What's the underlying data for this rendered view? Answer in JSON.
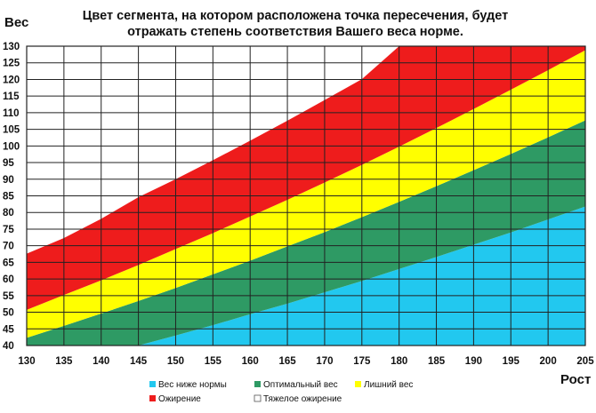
{
  "chart_data": {
    "type": "area",
    "title_lines": [
      "Цвет сегмента, на котором расположена точка пересечения, будет",
      "отражать степень соответствия Вашего веса норме."
    ],
    "xlabel": "Рост",
    "ylabel": "Вес",
    "xlim": [
      130,
      205
    ],
    "ylim": [
      40,
      130
    ],
    "x_ticks": [
      130,
      135,
      140,
      145,
      150,
      155,
      160,
      165,
      170,
      175,
      180,
      185,
      190,
      195,
      200,
      205
    ],
    "y_ticks": [
      40,
      45,
      50,
      55,
      60,
      65,
      70,
      75,
      80,
      85,
      90,
      95,
      100,
      105,
      110,
      115,
      120,
      125,
      130
    ],
    "grid": true,
    "legend_position": "bottom",
    "x": [
      130,
      135,
      140,
      145,
      150,
      155,
      160,
      165,
      170,
      175,
      180,
      185,
      190,
      195,
      200,
      205
    ],
    "series": [
      {
        "name": "Вес ниже нормы",
        "color": "#22c8ef",
        "region": "below",
        "upper": [
          31.3,
          34.1,
          37.0,
          40.0,
          43.0,
          46.1,
          49.4,
          52.6,
          56.0,
          59.4,
          63.0,
          66.6,
          70.3,
          74.0,
          77.9,
          81.8
        ]
      },
      {
        "name": "Оптимальный вес",
        "color": "#2e9a64",
        "upper": [
          42.3,
          45.9,
          49.6,
          53.4,
          57.3,
          61.4,
          65.5,
          69.8,
          74.1,
          78.6,
          83.2,
          87.9,
          92.7,
          97.6,
          102.6,
          107.7
        ]
      },
      {
        "name": "Лишний вес",
        "color": "#ffff00",
        "upper": [
          50.7,
          55.2,
          59.6,
          64.2,
          69.0,
          73.8,
          78.8,
          83.8,
          89.0,
          94.3,
          99.8,
          105.4,
          111.1,
          116.9,
          122.8,
          128.8
        ]
      },
      {
        "name": "Ожирение",
        "color": "#ee1c1c",
        "upper": [
          67.6,
          72.3,
          78.1,
          84.6,
          90.0,
          95.7,
          101.6,
          107.6,
          113.8,
          120.1,
          130,
          130,
          130,
          130,
          130,
          130
        ]
      },
      {
        "name": "Тяжелое ожирение",
        "color": "#ffffff",
        "region": "above"
      }
    ]
  }
}
